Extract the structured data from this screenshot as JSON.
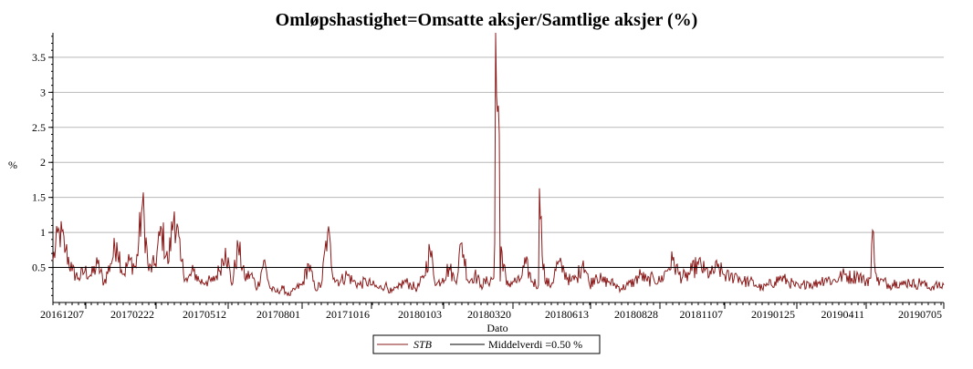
{
  "chart_data": {
    "type": "line",
    "title": "Omløpshastighet=Omsatte aksjer/Samtlige aksjer (%)",
    "xlabel": "Dato",
    "ylabel": "%",
    "ylim": [
      0,
      3.85
    ],
    "yticks": [
      0.5,
      1,
      1.5,
      2,
      2.5,
      3,
      3.5
    ],
    "ytick_labels": [
      "0.5",
      "1",
      "1.5",
      "2",
      "2.5",
      "3",
      "3.5"
    ],
    "x_start": "2016-11-01",
    "x_end": "2019-07-05",
    "xtick_labels": [
      "20161207",
      "20170222",
      "20170512",
      "20170801",
      "20171016",
      "20180103",
      "20180320",
      "20180613",
      "20180828",
      "20181107",
      "20190125",
      "20190411",
      "20190705"
    ],
    "xtick_dates": [
      "2016-12-07",
      "2017-02-22",
      "2017-05-12",
      "2017-08-01",
      "2017-10-16",
      "2018-01-03",
      "2018-03-20",
      "2018-06-13",
      "2018-08-28",
      "2018-11-07",
      "2019-01-25",
      "2019-04-11",
      "2019-07-05"
    ],
    "grid": true,
    "legend_position": "bottom-center",
    "series": [
      {
        "name": "STB",
        "color": "#8b1a1a",
        "style": "line",
        "points": [
          [
            "2016-11-01",
            0.6
          ],
          [
            "2016-11-08",
            1.02
          ],
          [
            "2016-11-15",
            0.75
          ],
          [
            "2016-11-22",
            0.45
          ],
          [
            "2016-11-29",
            0.35
          ],
          [
            "2016-12-06",
            0.45
          ],
          [
            "2016-12-13",
            0.38
          ],
          [
            "2016-12-20",
            0.55
          ],
          [
            "2016-12-27",
            0.28
          ],
          [
            "2017-01-03",
            0.55
          ],
          [
            "2017-01-10",
            0.86
          ],
          [
            "2017-01-17",
            0.4
          ],
          [
            "2017-01-24",
            0.6
          ],
          [
            "2017-01-31",
            0.5
          ],
          [
            "2017-02-07",
            1.4
          ],
          [
            "2017-02-14",
            0.45
          ],
          [
            "2017-02-21",
            0.55
          ],
          [
            "2017-02-28",
            1.05
          ],
          [
            "2017-03-07",
            0.55
          ],
          [
            "2017-03-14",
            1.3
          ],
          [
            "2017-03-21",
            0.6
          ],
          [
            "2017-03-28",
            0.3
          ],
          [
            "2017-04-04",
            0.45
          ],
          [
            "2017-04-11",
            0.3
          ],
          [
            "2017-04-18",
            0.3
          ],
          [
            "2017-04-25",
            0.3
          ],
          [
            "2017-05-02",
            0.45
          ],
          [
            "2017-05-09",
            0.78
          ],
          [
            "2017-05-16",
            0.25
          ],
          [
            "2017-05-23",
            0.8
          ],
          [
            "2017-05-30",
            0.35
          ],
          [
            "2017-06-06",
            0.4
          ],
          [
            "2017-06-13",
            0.2
          ],
          [
            "2017-06-20",
            0.6
          ],
          [
            "2017-06-27",
            0.2
          ],
          [
            "2017-07-04",
            0.15
          ],
          [
            "2017-07-11",
            0.2
          ],
          [
            "2017-07-18",
            0.1
          ],
          [
            "2017-07-25",
            0.2
          ],
          [
            "2017-08-01",
            0.25
          ],
          [
            "2017-08-08",
            0.55
          ],
          [
            "2017-08-15",
            0.2
          ],
          [
            "2017-08-22",
            0.25
          ],
          [
            "2017-08-29",
            1.0
          ],
          [
            "2017-09-05",
            0.35
          ],
          [
            "2017-09-12",
            0.3
          ],
          [
            "2017-09-19",
            0.4
          ],
          [
            "2017-09-26",
            0.3
          ],
          [
            "2017-10-03",
            0.25
          ],
          [
            "2017-10-10",
            0.3
          ],
          [
            "2017-10-17",
            0.25
          ],
          [
            "2017-10-24",
            0.2
          ],
          [
            "2017-10-31",
            0.25
          ],
          [
            "2017-11-07",
            0.15
          ],
          [
            "2017-11-14",
            0.2
          ],
          [
            "2017-11-21",
            0.3
          ],
          [
            "2017-11-28",
            0.25
          ],
          [
            "2017-12-05",
            0.2
          ],
          [
            "2017-12-12",
            0.35
          ],
          [
            "2017-12-19",
            0.75
          ],
          [
            "2017-12-26",
            0.25
          ],
          [
            "2018-01-02",
            0.35
          ],
          [
            "2018-01-09",
            0.5
          ],
          [
            "2018-01-16",
            0.3
          ],
          [
            "2018-01-23",
            0.85
          ],
          [
            "2018-01-30",
            0.3
          ],
          [
            "2018-02-06",
            0.4
          ],
          [
            "2018-02-13",
            0.25
          ],
          [
            "2018-02-20",
            0.3
          ],
          [
            "2018-02-27",
            0.35
          ],
          [
            "2018-03-06",
            0.3
          ],
          [
            "2018-03-13",
            0.25
          ],
          [
            "2018-03-20",
            0.3
          ],
          [
            "2018-03-27",
            0.3
          ],
          [
            "2018-04-03",
            0.55
          ],
          [
            "2018-04-10",
            0.3
          ],
          [
            "2018-04-17",
            0.25
          ],
          [
            "2018-04-24",
            0.3
          ],
          [
            "2018-05-01",
            0.25
          ],
          [
            "2018-05-08",
            0.55
          ],
          [
            "2018-05-15",
            0.45
          ],
          [
            "2018-05-22",
            0.3
          ],
          [
            "2018-05-29",
            0.35
          ],
          [
            "2018-06-05",
            0.6
          ],
          [
            "2018-06-12",
            0.25
          ],
          [
            "2018-06-19",
            0.4
          ],
          [
            "2018-06-26",
            0.3
          ],
          [
            "2018-07-03",
            0.3
          ],
          [
            "2018-07-10",
            0.25
          ],
          [
            "2018-07-17",
            0.2
          ],
          [
            "2018-07-24",
            0.25
          ],
          [
            "2018-07-31",
            0.3
          ],
          [
            "2018-08-07",
            0.4
          ],
          [
            "2018-08-14",
            0.3
          ],
          [
            "2018-08-21",
            0.35
          ],
          [
            "2018-08-28",
            0.3
          ],
          [
            "2018-09-04",
            0.45
          ],
          [
            "2018-09-11",
            0.6
          ],
          [
            "2018-09-18",
            0.4
          ],
          [
            "2018-09-25",
            0.35
          ],
          [
            "2018-10-02",
            0.45
          ],
          [
            "2018-10-09",
            0.55
          ],
          [
            "2018-10-16",
            0.45
          ],
          [
            "2018-10-23",
            0.4
          ],
          [
            "2018-10-30",
            0.5
          ],
          [
            "2018-11-06",
            0.4
          ],
          [
            "2018-11-13",
            0.35
          ],
          [
            "2018-11-20",
            0.4
          ],
          [
            "2018-11-27",
            0.3
          ],
          [
            "2018-12-04",
            0.3
          ],
          [
            "2018-12-11",
            0.25
          ],
          [
            "2018-12-18",
            0.2
          ],
          [
            "2018-12-25",
            0.25
          ],
          [
            "2019-01-01",
            0.3
          ],
          [
            "2019-01-08",
            0.35
          ],
          [
            "2019-01-15",
            0.3
          ],
          [
            "2019-01-22",
            0.25
          ],
          [
            "2019-01-29",
            0.2
          ],
          [
            "2019-02-05",
            0.3
          ],
          [
            "2019-02-12",
            0.25
          ],
          [
            "2019-02-19",
            0.3
          ],
          [
            "2019-02-26",
            0.35
          ],
          [
            "2019-03-05",
            0.3
          ],
          [
            "2019-03-12",
            0.35
          ],
          [
            "2019-03-19",
            0.4
          ],
          [
            "2019-03-26",
            0.35
          ],
          [
            "2019-04-02",
            0.4
          ],
          [
            "2019-04-09",
            0.3
          ],
          [
            "2019-04-16",
            0.35
          ],
          [
            "2019-04-23",
            0.3
          ],
          [
            "2019-04-30",
            0.3
          ],
          [
            "2019-05-07",
            0.25
          ],
          [
            "2019-05-14",
            0.3
          ],
          [
            "2019-05-21",
            0.25
          ],
          [
            "2019-05-28",
            0.3
          ],
          [
            "2019-06-04",
            0.25
          ],
          [
            "2019-06-11",
            0.3
          ],
          [
            "2019-06-18",
            0.2
          ],
          [
            "2019-06-25",
            0.25
          ],
          [
            "2019-07-02",
            0.22
          ],
          [
            "2019-07-05",
            0.25
          ]
        ],
        "spikes": [
          [
            "2018-03-01",
            3.85
          ],
          [
            "2018-03-02",
            2.95
          ],
          [
            "2018-03-05",
            2.4
          ],
          [
            "2018-03-07",
            0.8
          ],
          [
            "2018-04-18",
            1.63
          ],
          [
            "2018-04-19",
            1.2
          ],
          [
            "2019-04-18",
            1.03
          ],
          [
            "2018-02-28",
            0.85
          ]
        ]
      },
      {
        "name": "Middelverdi =0.50 %",
        "color": "#000000",
        "style": "hline",
        "value": 0.5
      }
    ]
  }
}
